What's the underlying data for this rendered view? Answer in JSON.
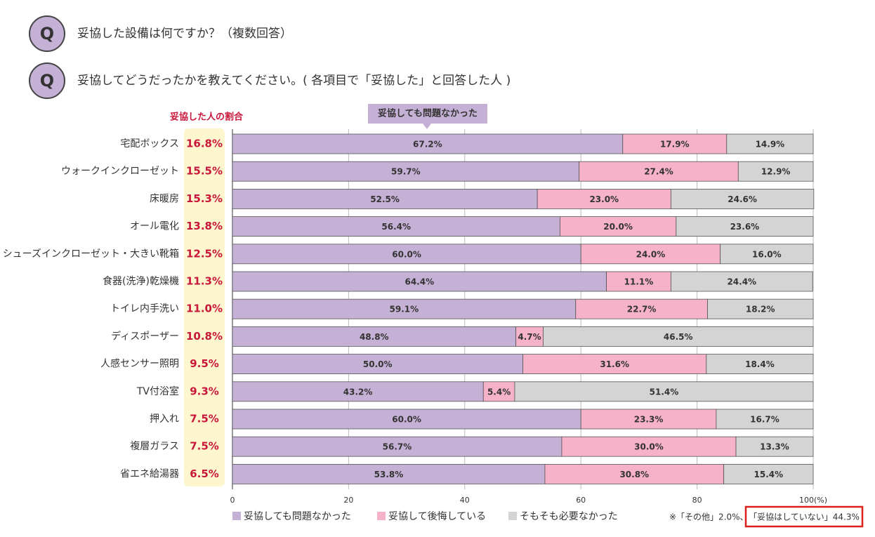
{
  "header": {
    "questions": [
      {
        "icon": "Q",
        "text": "妥協した設備は何ですか？（複数回答）"
      },
      {
        "icon": "Q",
        "text": "妥協してどうだったかを教えてください。( 各項目で「妥協した」と回答した人 )"
      }
    ]
  },
  "chart_data": {
    "type": "bar",
    "orientation": "horizontal",
    "stacked": true,
    "categories": [
      "宅配ボックス",
      "ウォークインクローゼット",
      "床暖房",
      "オール電化",
      "シューズインクローゼット・大きい靴箱",
      "食器(洗浄)乾燥機",
      "トイレ内手洗い",
      "ディスポーザー",
      "人感センサー照明",
      "TV付浴室",
      "押入れ",
      "複層ガラス",
      "省エネ給湯器"
    ],
    "share": {
      "title": "妥協した人の割合",
      "color": "#c8173a",
      "values": [
        16.8,
        15.5,
        15.3,
        13.8,
        12.5,
        11.3,
        11.0,
        10.8,
        9.5,
        9.3,
        7.5,
        7.5,
        6.5
      ],
      "value_labels": [
        "16.8%",
        "15.5%",
        "15.3%",
        "13.8%",
        "12.5%",
        "11.3%",
        "11.0%",
        "10.8%",
        "9.5%",
        "9.3%",
        "7.5%",
        "7.5%",
        "6.5%"
      ]
    },
    "series": [
      {
        "name": "妥協しても問題なかった",
        "color": "#c6b1d6",
        "values": [
          67.2,
          59.7,
          52.5,
          56.4,
          60.0,
          64.4,
          59.1,
          48.8,
          50.0,
          43.2,
          60.0,
          56.7,
          53.8
        ],
        "value_labels": [
          "67.2%",
          "59.7%",
          "52.5%",
          "56.4%",
          "60.0%",
          "64.4%",
          "59.1%",
          "48.8%",
          "50.0%",
          "43.2%",
          "60.0%",
          "56.7%",
          "53.8%"
        ]
      },
      {
        "name": "妥協して後悔している",
        "color": "#f5b2c8",
        "values": [
          17.9,
          27.4,
          23.0,
          20.0,
          24.0,
          11.1,
          22.7,
          4.7,
          31.6,
          5.4,
          23.3,
          30.0,
          30.8
        ],
        "value_labels": [
          "17.9%",
          "27.4%",
          "23.0%",
          "20.0%",
          "24.0%",
          "11.1%",
          "22.7%",
          "4.7%",
          "31.6%",
          "5.4%",
          "23.3%",
          "30.0%",
          "30.8%"
        ]
      },
      {
        "name": "そもそも必要なかった",
        "color": "#d4d4d4",
        "values": [
          14.9,
          12.9,
          24.6,
          23.6,
          16.0,
          24.4,
          18.2,
          46.5,
          18.4,
          51.4,
          16.7,
          13.3,
          15.4
        ],
        "value_labels": [
          "14.9%",
          "12.9%",
          "24.6%",
          "23.6%",
          "16.0%",
          "24.4%",
          "18.2%",
          "46.5%",
          "18.4%",
          "51.4%",
          "16.7%",
          "13.3%",
          "15.4%"
        ]
      }
    ],
    "xlim": [
      0,
      100
    ],
    "xticks": [
      0,
      20,
      40,
      60,
      80,
      {
        "value": 100,
        "label": "100(%)"
      }
    ],
    "grid": true,
    "annotation": "妥協しても問題なかった",
    "note": {
      "text": "※「その他」2.0%、",
      "highlight": "「妥協はしていない」44.3%"
    }
  }
}
